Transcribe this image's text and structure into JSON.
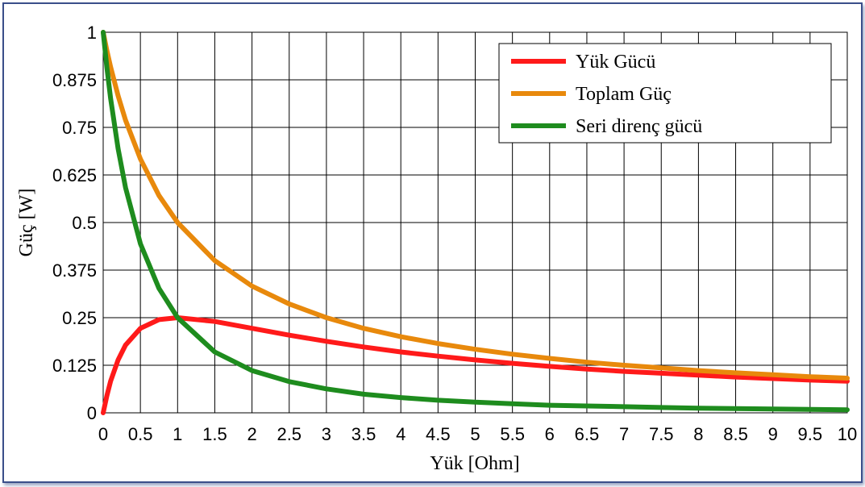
{
  "chart_data": {
    "type": "line",
    "title": "",
    "xlabel": "Yük [Ohm]",
    "ylabel": "Güç [W]",
    "xlim": [
      0,
      10
    ],
    "ylim": [
      0,
      1
    ],
    "grid": true,
    "legend_position": "top-right",
    "x_ticks": [
      "0",
      "0.5",
      "1",
      "1.5",
      "2",
      "2.5",
      "3",
      "3.5",
      "4",
      "4.5",
      "5",
      "5.5",
      "6",
      "6.5",
      "7",
      "7.5",
      "8",
      "8.5",
      "9",
      "9.5",
      "10"
    ],
    "y_ticks": [
      "0",
      "0.125",
      "0.25",
      "0.375",
      "0.5",
      "0.625",
      "0.75",
      "0.875",
      "1"
    ],
    "x": [
      0,
      0.05,
      0.1,
      0.2,
      0.3,
      0.5,
      0.75,
      1,
      1.5,
      2,
      2.5,
      3,
      3.5,
      4,
      4.5,
      5,
      5.5,
      6,
      6.5,
      7,
      7.5,
      8,
      8.5,
      9,
      9.5,
      10
    ],
    "series": [
      {
        "name": "Yük Gücü",
        "color": "#ff1a1a",
        "values": [
          0,
          0.045,
          0.083,
          0.139,
          0.178,
          0.222,
          0.245,
          0.25,
          0.24,
          0.222,
          0.204,
          0.188,
          0.173,
          0.16,
          0.149,
          0.139,
          0.13,
          0.122,
          0.115,
          0.109,
          0.104,
          0.099,
          0.094,
          0.09,
          0.086,
          0.083
        ]
      },
      {
        "name": "Toplam Güç",
        "color": "#e8890c",
        "values": [
          1,
          0.952,
          0.909,
          0.833,
          0.769,
          0.667,
          0.571,
          0.5,
          0.4,
          0.333,
          0.286,
          0.25,
          0.222,
          0.2,
          0.182,
          0.167,
          0.154,
          0.143,
          0.133,
          0.125,
          0.118,
          0.111,
          0.105,
          0.1,
          0.095,
          0.091
        ]
      },
      {
        "name": "Seri direnç gücü",
        "color": "#1e8c1e",
        "values": [
          1,
          0.907,
          0.826,
          0.694,
          0.592,
          0.444,
          0.327,
          0.25,
          0.16,
          0.111,
          0.082,
          0.063,
          0.049,
          0.04,
          0.033,
          0.028,
          0.024,
          0.02,
          0.018,
          0.016,
          0.014,
          0.012,
          0.011,
          0.01,
          0.009,
          0.008
        ]
      }
    ]
  }
}
